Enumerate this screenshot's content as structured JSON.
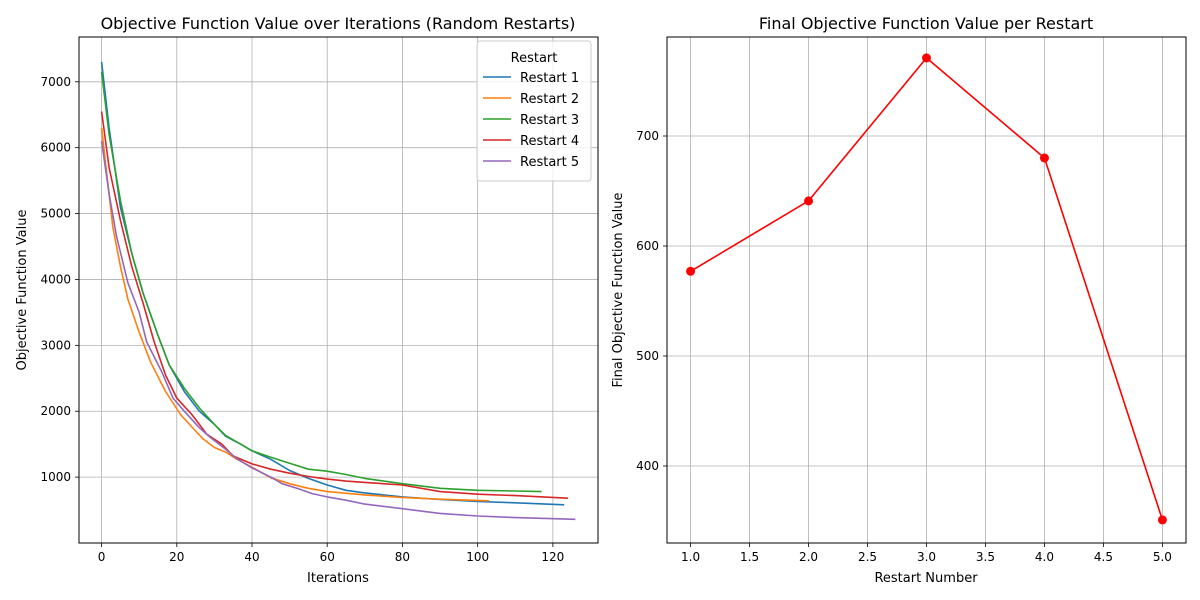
{
  "chart_data": [
    {
      "type": "line",
      "title": "Objective Function Value over Iterations (Random Restarts)",
      "xlabel": "Iterations",
      "ylabel": "Objective Function Value",
      "xlim": [
        -6,
        132
      ],
      "ylim": [
        0,
        7680
      ],
      "xticks": [
        0,
        20,
        40,
        60,
        80,
        100,
        120
      ],
      "yticks": [
        1000,
        2000,
        3000,
        4000,
        5000,
        6000,
        7000
      ],
      "grid": true,
      "legend": {
        "title": "Restart",
        "position": "top-right"
      },
      "series": [
        {
          "name": "Restart 1",
          "color": "#1f77b4",
          "points": [
            [
              0,
              7300
            ],
            [
              2,
              6300
            ],
            [
              5,
              5100
            ],
            [
              8,
              4400
            ],
            [
              11,
              3800
            ],
            [
              15,
              3150
            ],
            [
              18,
              2700
            ],
            [
              22,
              2300
            ],
            [
              26,
              2000
            ],
            [
              30,
              1800
            ],
            [
              33,
              1620
            ],
            [
              37,
              1500
            ],
            [
              40,
              1400
            ],
            [
              45,
              1270
            ],
            [
              50,
              1100
            ],
            [
              55,
              980
            ],
            [
              60,
              880
            ],
            [
              65,
              800
            ],
            [
              70,
              760
            ],
            [
              80,
              700
            ],
            [
              90,
              660
            ],
            [
              100,
              630
            ],
            [
              110,
              610
            ],
            [
              123,
              580
            ]
          ]
        },
        {
          "name": "Restart 2",
          "color": "#ff7f0e",
          "points": [
            [
              0,
              6300
            ],
            [
              1,
              5800
            ],
            [
              3,
              4800
            ],
            [
              5,
              4200
            ],
            [
              7,
              3700
            ],
            [
              10,
              3200
            ],
            [
              13,
              2750
            ],
            [
              17,
              2300
            ],
            [
              21,
              1950
            ],
            [
              25,
              1700
            ],
            [
              27,
              1580
            ],
            [
              30,
              1450
            ],
            [
              33,
              1380
            ],
            [
              36,
              1270
            ],
            [
              40,
              1150
            ],
            [
              45,
              990
            ],
            [
              50,
              900
            ],
            [
              55,
              830
            ],
            [
              60,
              780
            ],
            [
              70,
              730
            ],
            [
              80,
              690
            ],
            [
              90,
              665
            ],
            [
              103,
              640
            ]
          ]
        },
        {
          "name": "Restart 3",
          "color": "#2ca02c",
          "points": [
            [
              0,
              7150
            ],
            [
              2,
              6200
            ],
            [
              5,
              5200
            ],
            [
              8,
              4400
            ],
            [
              11,
              3800
            ],
            [
              15,
              3150
            ],
            [
              18,
              2700
            ],
            [
              22,
              2350
            ],
            [
              26,
              2050
            ],
            [
              30,
              1800
            ],
            [
              33,
              1630
            ],
            [
              37,
              1500
            ],
            [
              40,
              1400
            ],
            [
              45,
              1300
            ],
            [
              50,
              1210
            ],
            [
              55,
              1120
            ],
            [
              60,
              1090
            ],
            [
              65,
              1040
            ],
            [
              70,
              980
            ],
            [
              80,
              900
            ],
            [
              90,
              830
            ],
            [
              100,
              800
            ],
            [
              110,
              790
            ],
            [
              117,
              780
            ]
          ]
        },
        {
          "name": "Restart 4",
          "color": "#d62728",
          "points": [
            [
              0,
              6550
            ],
            [
              2,
              5700
            ],
            [
              5,
              4900
            ],
            [
              8,
              4200
            ],
            [
              11,
              3650
            ],
            [
              14,
              3050
            ],
            [
              17,
              2550
            ],
            [
              20,
              2200
            ],
            [
              24,
              1950
            ],
            [
              28,
              1650
            ],
            [
              32,
              1500
            ],
            [
              35,
              1320
            ],
            [
              40,
              1200
            ],
            [
              45,
              1120
            ],
            [
              50,
              1060
            ],
            [
              55,
              1010
            ],
            [
              60,
              970
            ],
            [
              65,
              940
            ],
            [
              70,
              920
            ],
            [
              80,
              880
            ],
            [
              90,
              780
            ],
            [
              100,
              740
            ],
            [
              110,
              720
            ],
            [
              124,
              680
            ]
          ]
        },
        {
          "name": "Restart 5",
          "color": "#9467bd",
          "points": [
            [
              0,
              6100
            ],
            [
              2,
              5300
            ],
            [
              4,
              4650
            ],
            [
              7,
              3950
            ],
            [
              10,
              3500
            ],
            [
              12,
              3050
            ],
            [
              16,
              2600
            ],
            [
              19,
              2200
            ],
            [
              22,
              2000
            ],
            [
              26,
              1750
            ],
            [
              29,
              1600
            ],
            [
              33,
              1420
            ],
            [
              36,
              1280
            ],
            [
              40,
              1140
            ],
            [
              45,
              1000
            ],
            [
              48,
              900
            ],
            [
              52,
              830
            ],
            [
              56,
              750
            ],
            [
              60,
              700
            ],
            [
              65,
              650
            ],
            [
              70,
              590
            ],
            [
              80,
              520
            ],
            [
              90,
              450
            ],
            [
              100,
              410
            ],
            [
              110,
              385
            ],
            [
              126,
              360
            ]
          ]
        }
      ]
    },
    {
      "type": "line",
      "title": "Final Objective Function Value per Restart",
      "xlabel": "Restart Number",
      "ylabel": "Final Objective Function Value",
      "xlim": [
        0.8,
        5.2
      ],
      "ylim": [
        330,
        790
      ],
      "xticks": [
        "1.0",
        "1.5",
        "2.0",
        "2.5",
        "3.0",
        "3.5",
        "4.0",
        "4.5",
        "5.0"
      ],
      "yticks": [
        400,
        500,
        600,
        700
      ],
      "grid": true,
      "color": "#ff0000",
      "x": [
        1,
        2,
        3,
        4,
        5
      ],
      "values": [
        577,
        641,
        771,
        680,
        351
      ]
    }
  ]
}
